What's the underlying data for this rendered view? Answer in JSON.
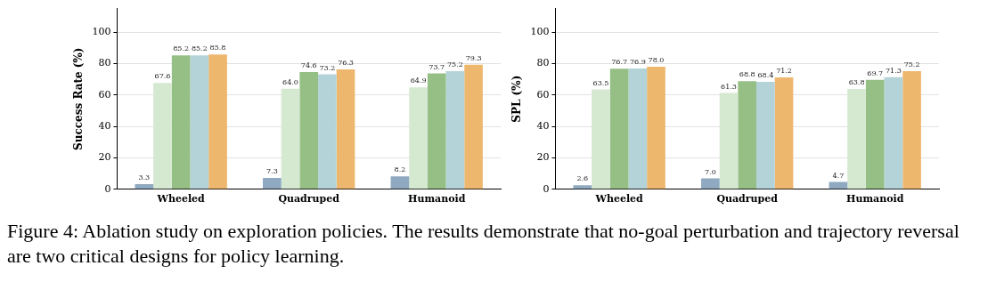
{
  "chart_data": [
    {
      "type": "bar",
      "ylabel": "Success Rate (%)",
      "categories": [
        "Wheeled",
        "Quadruped",
        "Humanoid"
      ],
      "series": [
        {
          "color": "#8fa9c0",
          "values": [
            3.3,
            7.3,
            8.2
          ],
          "value_labels": [
            "3.3",
            "7.3",
            "8.2"
          ]
        },
        {
          "color": "#d5e8d0",
          "values": [
            67.6,
            64,
            64.9
          ],
          "value_labels": [
            "67.6",
            "64.0",
            "64.9"
          ]
        },
        {
          "color": "#96bf86",
          "values": [
            85.2,
            74.6,
            73.7
          ],
          "value_labels": [
            "85.2",
            "74.6",
            "73.7"
          ]
        },
        {
          "color": "#b4d3d9",
          "values": [
            85.2,
            73.2,
            75.2
          ],
          "value_labels": [
            "85.2",
            "73.2",
            "75.2"
          ]
        },
        {
          "color": "#eeb76e",
          "values": [
            85.8,
            76.3,
            79.3
          ],
          "value_labels": [
            "85.8",
            "76.3",
            "79.3"
          ]
        }
      ],
      "ylim": [
        0,
        115
      ],
      "yticks": [
        0,
        20,
        40,
        60,
        80,
        100
      ],
      "grid": "y",
      "legend": false,
      "annotations": [
        "Figure 4: Ablation study on exploration policies. The results demonstrate that no-goal perturbation and trajectory reversal are two critical designs for policy learning."
      ]
    },
    {
      "type": "bar",
      "ylabel": "SPL (%)",
      "categories": [
        "Wheeled",
        "Quadruped",
        "Humanoid"
      ],
      "series": [
        {
          "color": "#8fa9c0",
          "values": [
            2.6,
            7,
            4.7
          ],
          "value_labels": [
            "2.6",
            "7.0",
            "4.7"
          ]
        },
        {
          "color": "#d5e8d0",
          "values": [
            63.5,
            61.3,
            63.8
          ],
          "value_labels": [
            "63.5",
            "61.3",
            "63.8"
          ]
        },
        {
          "color": "#96bf86",
          "values": [
            76.7,
            68.8,
            69.7
          ],
          "value_labels": [
            "76.7",
            "68.8",
            "69.7"
          ]
        },
        {
          "color": "#b4d3d9",
          "values": [
            76.9,
            68.4,
            71.3
          ],
          "value_labels": [
            "76.9",
            "68.4",
            "71.3"
          ]
        },
        {
          "color": "#eeb76e",
          "values": [
            78,
            71.2,
            75.2
          ],
          "value_labels": [
            "78.0",
            "71.2",
            "75.2"
          ]
        }
      ],
      "ylim": [
        0,
        115
      ],
      "yticks": [
        0,
        20,
        40,
        60,
        80,
        100
      ],
      "grid": "y",
      "legend": false
    }
  ]
}
